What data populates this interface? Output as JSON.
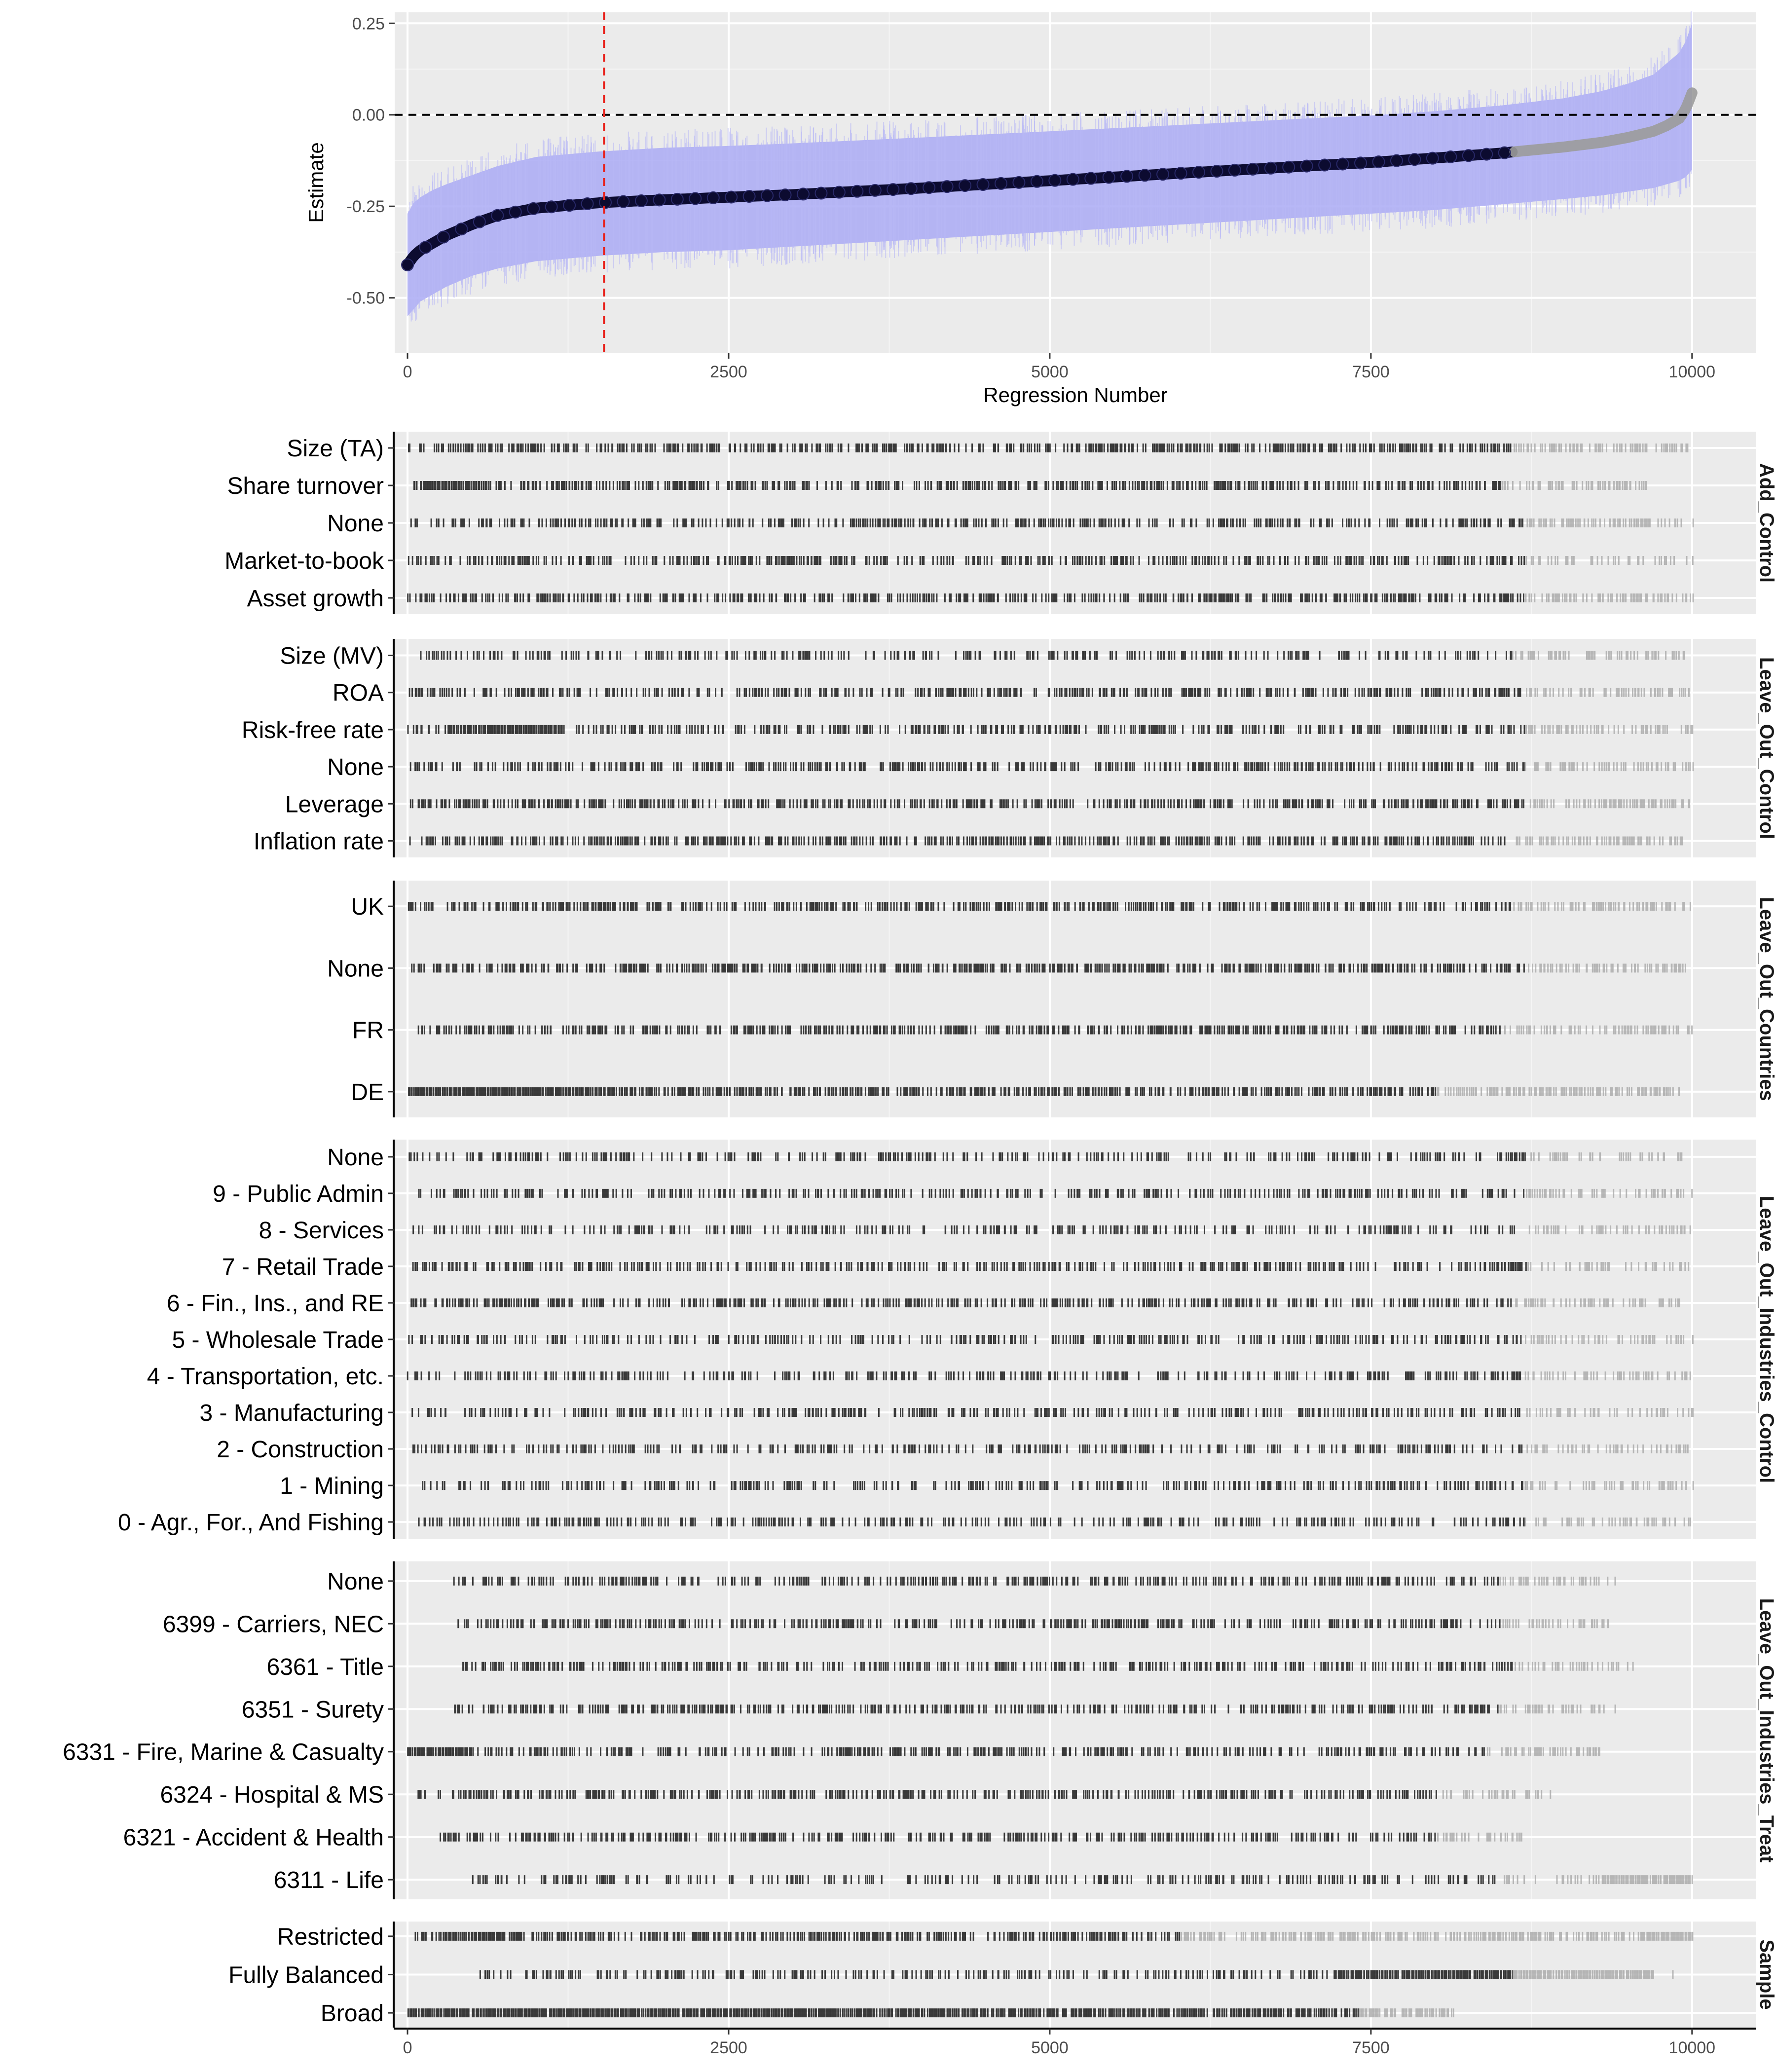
{
  "chart_data": [
    {
      "type": "scatter",
      "name": "specification-curve",
      "xlabel": "Regression Number",
      "ylabel": "Estimate",
      "xlim": [
        -100,
        10500
      ],
      "ylim": [
        -0.65,
        0.28
      ],
      "x_ticks": [
        0,
        2500,
        5000,
        7500,
        10000
      ],
      "x_tick_labels": [
        "0",
        "2500",
        "5000",
        "7500",
        "10000"
      ],
      "y_ticks": [
        -0.5,
        -0.25,
        0.0,
        0.25
      ],
      "y_tick_labels": [
        "-0.50",
        "-0.25",
        "0.00",
        "0.25"
      ],
      "grid": true,
      "hline": {
        "y": 0.0,
        "style": "dashed",
        "color": "#000000"
      },
      "vline": {
        "x": 1530,
        "style": "dashed",
        "color": "#e8231d"
      },
      "n_points": 10000,
      "curve": {
        "x": [
          0,
          50,
          100,
          200,
          300,
          500,
          700,
          1000,
          1500,
          2000,
          2500,
          3000,
          4000,
          5000,
          6000,
          7000,
          7500,
          8000,
          8500,
          9000,
          9300,
          9500,
          9700,
          9800,
          9900,
          9950,
          10000
        ],
        "y": [
          -0.41,
          -0.385,
          -0.37,
          -0.35,
          -0.33,
          -0.3,
          -0.275,
          -0.255,
          -0.24,
          -0.232,
          -0.225,
          -0.218,
          -0.2,
          -0.18,
          -0.16,
          -0.14,
          -0.13,
          -0.118,
          -0.105,
          -0.088,
          -0.075,
          -0.062,
          -0.045,
          -0.03,
          -0.01,
          0.015,
          0.06
        ],
        "lower": [
          -0.55,
          -0.53,
          -0.51,
          -0.49,
          -0.47,
          -0.44,
          -0.42,
          -0.4,
          -0.385,
          -0.375,
          -0.37,
          -0.36,
          -0.34,
          -0.32,
          -0.3,
          -0.28,
          -0.27,
          -0.26,
          -0.245,
          -0.23,
          -0.22,
          -0.21,
          -0.2,
          -0.19,
          -0.18,
          -0.17,
          -0.15
        ],
        "upper": [
          -0.27,
          -0.24,
          -0.225,
          -0.205,
          -0.19,
          -0.165,
          -0.14,
          -0.115,
          -0.1,
          -0.09,
          -0.085,
          -0.078,
          -0.062,
          -0.045,
          -0.028,
          -0.01,
          -0.002,
          0.01,
          0.025,
          0.045,
          0.065,
          0.085,
          0.11,
          0.14,
          0.17,
          0.2,
          0.25
        ]
      },
      "significance_boundary_x": 8600,
      "colors": {
        "significant": "#0c0b30",
        "not_significant": "#9b9b9b",
        "ci": "#aaaaf4",
        "panel": "#ebebeb"
      }
    },
    {
      "type": "table",
      "name": "specification-indicators",
      "xlim": [
        -100,
        10500
      ],
      "x_ticks": [
        0,
        2500,
        5000,
        7500,
        10000
      ],
      "x_tick_labels": [
        "0",
        "2500",
        "5000",
        "7500",
        "10000"
      ],
      "panels": [
        {
          "strip": "Add_Control",
          "rows": [
            {
              "label": "Size (TA)",
              "start": 0,
              "end": 10000,
              "density": 0.55,
              "dark_end": 8600
            },
            {
              "label": "Share turnover",
              "start": 50,
              "end": 9650,
              "density": 0.5,
              "dark_end": 8500,
              "dense": [
                [
                  100,
                  600
                ]
              ]
            },
            {
              "label": "None",
              "start": 0,
              "end": 10000,
              "density": 0.45,
              "dark_end": 8700
            },
            {
              "label": "Market-to-book",
              "start": 0,
              "end": 10000,
              "density": 0.42,
              "dark_end": 8700
            },
            {
              "label": "Asset growth",
              "start": 0,
              "end": 10000,
              "density": 0.5,
              "dark_end": 8700
            }
          ]
        },
        {
          "strip": "Leave_Out_Control",
          "rows": [
            {
              "label": "Size (MV)",
              "start": 100,
              "end": 9950,
              "density": 0.35,
              "dark_end": 8600
            },
            {
              "label": "ROA",
              "start": 0,
              "end": 10000,
              "density": 0.45,
              "dark_end": 8700
            },
            {
              "label": "Risk-free rate",
              "start": 0,
              "end": 10000,
              "density": 0.45,
              "dark_end": 8700,
              "dense": [
                [
                  300,
                  1200
                ]
              ]
            },
            {
              "label": "None",
              "start": 0,
              "end": 10000,
              "density": 0.45,
              "dark_end": 8700
            },
            {
              "label": "Leverage",
              "start": 0,
              "end": 10000,
              "density": 0.5,
              "dark_end": 8700
            },
            {
              "label": "Inflation rate",
              "start": 0,
              "end": 9950,
              "density": 0.5,
              "dark_end": 8600
            }
          ]
        },
        {
          "strip": "Leave_Out_Countries",
          "rows": [
            {
              "label": "UK",
              "start": 0,
              "end": 10000,
              "density": 0.5,
              "dark_end": 8600
            },
            {
              "label": "None",
              "start": 30,
              "end": 9950,
              "density": 0.55,
              "dark_end": 8700
            },
            {
              "label": "FR",
              "start": 80,
              "end": 10000,
              "density": 0.5,
              "dark_end": 8500
            },
            {
              "label": "DE",
              "start": 0,
              "end": 9900,
              "density": 0.6,
              "dark_end": 8000,
              "dense": [
                [
                  0,
                  1700
                ]
              ]
            }
          ]
        },
        {
          "strip": "Leave_Out_Industries_Control",
          "rows": [
            {
              "label": "None",
              "start": 0,
              "end": 10000,
              "density": 0.35,
              "dark_end": 8700
            },
            {
              "label": "9 - Public Admin",
              "start": 40,
              "end": 10000,
              "density": 0.35,
              "dark_end": 8700
            },
            {
              "label": "8 - Services",
              "start": 40,
              "end": 10000,
              "density": 0.35,
              "dark_end": 8700
            },
            {
              "label": "7 - Retail Trade",
              "start": 40,
              "end": 10000,
              "density": 0.35,
              "dark_end": 8700
            },
            {
              "label": "6 - Fin., Ins., and RE",
              "start": 0,
              "end": 9900,
              "density": 0.45,
              "dark_end": 8600
            },
            {
              "label": "5 - Wholesale Trade",
              "start": 0,
              "end": 10000,
              "density": 0.35,
              "dark_end": 8700
            },
            {
              "label": "4 - Transportation, etc.",
              "start": 0,
              "end": 10000,
              "density": 0.35,
              "dark_end": 8700
            },
            {
              "label": "3 - Manufacturing",
              "start": 0,
              "end": 10000,
              "density": 0.35,
              "dark_end": 8700
            },
            {
              "label": "2 - Construction",
              "start": 40,
              "end": 10000,
              "density": 0.35,
              "dark_end": 8700
            },
            {
              "label": "1 - Mining",
              "start": 0,
              "end": 10000,
              "density": 0.35,
              "dark_end": 8700
            },
            {
              "label": "0 - Agr., For., And Fishing",
              "start": 0,
              "end": 10000,
              "density": 0.35,
              "dark_end": 8700
            }
          ]
        },
        {
          "strip": "Leave_Out_Industries_Treat",
          "rows": [
            {
              "label": "None",
              "start": 350,
              "end": 9400,
              "density": 0.4,
              "dark_end": 8500
            },
            {
              "label": "6399 - Carriers, NEC",
              "start": 380,
              "end": 9400,
              "density": 0.4,
              "dark_end": 8500
            },
            {
              "label": "6361 - Title",
              "start": 400,
              "end": 9550,
              "density": 0.45,
              "dark_end": 8600
            },
            {
              "label": "6351 - Surety",
              "start": 350,
              "end": 9400,
              "density": 0.45,
              "dark_end": 8500
            },
            {
              "label": "6331 - Fire, Marine & Casualty",
              "start": 0,
              "end": 9300,
              "density": 0.4,
              "dark_end": 8400,
              "dense": [
                [
                  0,
                  500
                ]
              ]
            },
            {
              "label": "6324 - Hospital & MS",
              "start": 80,
              "end": 8900,
              "density": 0.45,
              "dark_end": 8000
            },
            {
              "label": "6321 - Accident & Health",
              "start": 200,
              "end": 8700,
              "density": 0.45,
              "dark_end": 8000
            },
            {
              "label": "6311 - Life",
              "start": 500,
              "end": 10000,
              "density": 0.3,
              "dark_end": 8500,
              "light_dense": [
                [
                  9300,
                  10000
                ]
              ]
            }
          ]
        },
        {
          "strip": "Sample",
          "rows": [
            {
              "label": "Restricted",
              "start": 60,
              "end": 10000,
              "density": 0.55,
              "dark_end": 6000,
              "dense": [
                [
                  250,
                  900
                ]
              ],
              "light_dense": [
                [
                  9600,
                  10000
                ]
              ]
            },
            {
              "label": "Fully Balanced",
              "start": 550,
              "end": 9850,
              "density": 0.3,
              "dark_end": 8600,
              "dense": [
                [
                  7200,
                  8600
                ]
              ],
              "light_dense": [
                [
                  8600,
                  9700
                ]
              ]
            },
            {
              "label": "Broad",
              "start": 0,
              "end": 8150,
              "density": 0.8,
              "dark_end": 7400,
              "dense": [
                [
                  0,
                  4000
                ]
              ]
            }
          ]
        }
      ]
    }
  ]
}
